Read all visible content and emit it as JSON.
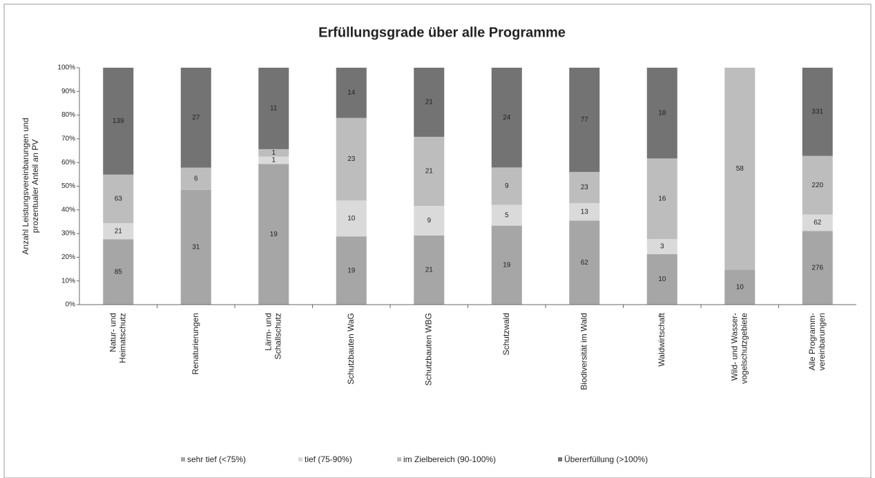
{
  "chart_data": {
    "type": "bar",
    "stacked": "percent",
    "title": "Erfüllungsgrade über alle Programme",
    "ylabel": [
      "Anzahl Leistungsvereinbarungen und",
      "prozentualer Anteil an PV"
    ],
    "categories": [
      [
        "Natur- und",
        "Heimatschutz"
      ],
      [
        "Renaturierungen"
      ],
      [
        "Lärm- und",
        "Schallschutz"
      ],
      [
        "Schutzbauten WaG"
      ],
      [
        "Schutzbauten WBG"
      ],
      [
        "Schutzwald"
      ],
      [
        "Biodiversität im Wald"
      ],
      [
        "Waldwirtschaft"
      ],
      [
        "Wild- und Wasser-",
        "vogelschutzgebiete"
      ],
      [
        "Alle Programm-",
        "vereinbarungen"
      ]
    ],
    "series": [
      {
        "name": "sehr tief (<75%)",
        "color": "#a6a6a6",
        "values": [
          85,
          31,
          19,
          19,
          21,
          19,
          62,
          10,
          10,
          276
        ]
      },
      {
        "name": "tief (75-90%)",
        "color": "#dadada",
        "values": [
          21,
          null,
          1,
          10,
          9,
          5,
          13,
          3,
          null,
          62
        ]
      },
      {
        "name": "im Zielbereich (90-100%)",
        "color": "#bdbdbd",
        "values": [
          63,
          6,
          1,
          23,
          21,
          9,
          23,
          16,
          58,
          220
        ]
      },
      {
        "name": "Übererfüllung (>100%)",
        "color": "#737373",
        "values": [
          139,
          27,
          11,
          14,
          21,
          24,
          77,
          18,
          null,
          331
        ]
      }
    ],
    "ylim": [
      0,
      100
    ],
    "yticks": [
      {
        "value": 0,
        "label": "0%"
      },
      {
        "value": 10,
        "label": "10%"
      },
      {
        "value": 20,
        "label": "20%"
      },
      {
        "value": 30,
        "label": "30%"
      },
      {
        "value": 40,
        "label": "40%"
      },
      {
        "value": 50,
        "label": "50%"
      },
      {
        "value": 60,
        "label": "60%"
      },
      {
        "value": 70,
        "label": "70%"
      },
      {
        "value": 80,
        "label": "80%"
      },
      {
        "value": 90,
        "label": "90%"
      },
      {
        "value": 100,
        "label": "100%"
      }
    ],
    "legend": "bottom"
  }
}
